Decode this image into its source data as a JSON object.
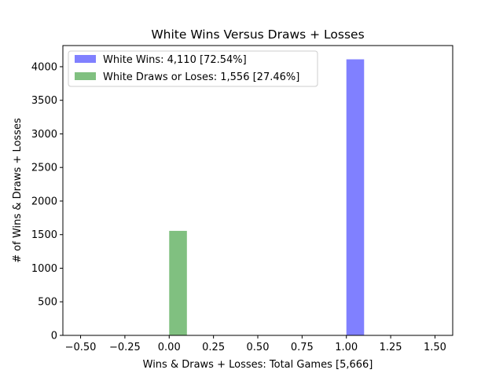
{
  "chart_data": {
    "type": "bar",
    "title": "White Wins Versus Draws + Losses",
    "xlabel": "Wins & Draws + Losses: Total Games [5,666]",
    "ylabel": "# of Wins & Draws + Losses",
    "xlim": [
      -0.6,
      1.6
    ],
    "ylim": [
      0,
      4315
    ],
    "x_ticks": [
      -0.5,
      -0.25,
      0.0,
      0.25,
      0.5,
      0.75,
      1.0,
      1.25,
      1.5
    ],
    "x_tick_labels": [
      "−0.50",
      "−0.25",
      "0.00",
      "0.25",
      "0.50",
      "0.75",
      "1.00",
      "1.25",
      "1.50"
    ],
    "y_ticks": [
      0,
      500,
      1000,
      1500,
      2000,
      2500,
      3000,
      3500,
      4000
    ],
    "y_tick_labels": [
      "0",
      "500",
      "1000",
      "1500",
      "2000",
      "2500",
      "3000",
      "3500",
      "4000"
    ],
    "grid": false,
    "legend_position": "top-left",
    "series": [
      {
        "name": "White Wins: 4,110 [72.54%]",
        "color": "#8080ff",
        "bars": [
          {
            "x0": 1.0,
            "x1": 1.1,
            "value": 4110
          }
        ]
      },
      {
        "name": "White Draws or Loses: 1,556 [27.46%]",
        "color": "#80c080",
        "bars": [
          {
            "x0": 0.0,
            "x1": 0.1,
            "value": 1556
          }
        ]
      }
    ]
  }
}
